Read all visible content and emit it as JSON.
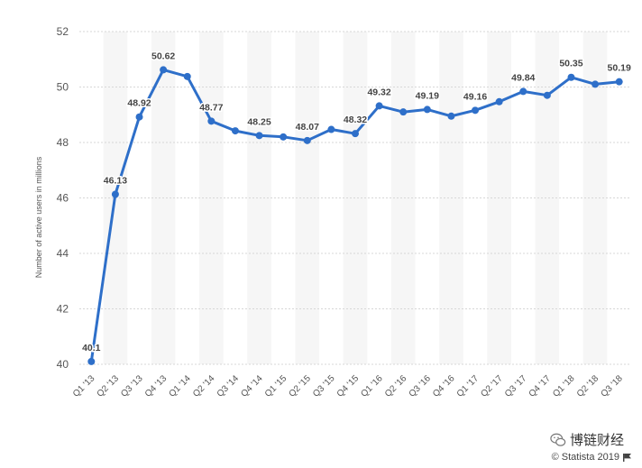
{
  "chart_data": {
    "type": "line",
    "ylabel": "Number of active users in millions",
    "ylim": [
      40,
      52
    ],
    "yticks": [
      "52",
      "50",
      "48",
      "46",
      "44",
      "42",
      "40"
    ],
    "categories": [
      "Q1 '13",
      "Q2 '13",
      "Q3 '13",
      "Q4 '13",
      "Q1 '14",
      "Q2 '14",
      "Q3 '14",
      "Q4 '14",
      "Q1 '15",
      "Q2 '15",
      "Q3 '15",
      "Q4 '15",
      "Q1 '16",
      "Q2 '16",
      "Q3 '16",
      "Q4 '16",
      "Q1 '17",
      "Q2 '17",
      "Q3 '17",
      "Q4 '17",
      "Q1 '18",
      "Q2 '18",
      "Q3 '18"
    ],
    "values": [
      40.1,
      46.13,
      48.92,
      50.62,
      50.38,
      48.77,
      48.42,
      48.25,
      48.2,
      48.07,
      48.47,
      48.32,
      49.32,
      49.1,
      49.19,
      48.95,
      49.16,
      49.47,
      49.84,
      49.7,
      50.35,
      50.1,
      50.19
    ],
    "data_labels": [
      {
        "index": 0,
        "text": "40.1"
      },
      {
        "index": 1,
        "text": "46.13"
      },
      {
        "index": 2,
        "text": "48.92"
      },
      {
        "index": 3,
        "text": "50.62"
      },
      {
        "index": 5,
        "text": "48.77"
      },
      {
        "index": 7,
        "text": "48.25"
      },
      {
        "index": 9,
        "text": "48.07"
      },
      {
        "index": 11,
        "text": "48.32"
      },
      {
        "index": 12,
        "text": "49.32"
      },
      {
        "index": 14,
        "text": "49.19"
      },
      {
        "index": 16,
        "text": "49.16"
      },
      {
        "index": 18,
        "text": "49.84"
      },
      {
        "index": 20,
        "text": "50.35"
      },
      {
        "index": 22,
        "text": "50.19"
      }
    ],
    "grid": true,
    "line_color": "#2e6fc9"
  },
  "watermark": {
    "text": "博链财经",
    "icon": "wechat-icon"
  },
  "credit": {
    "text": "© Statista 2019",
    "icon": "flag-icon"
  }
}
